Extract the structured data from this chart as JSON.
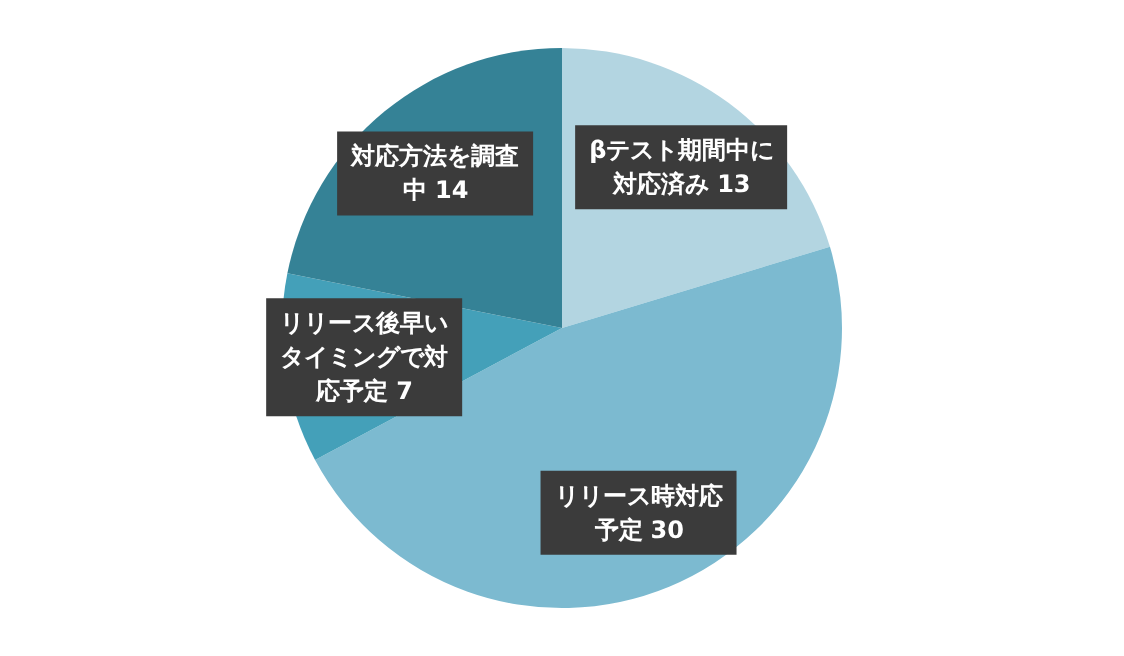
{
  "chart_data": {
    "type": "pie",
    "categories": [
      "βテスト期間中に対応済み",
      "リリース時対応予定",
      "リリース後早いタイミングで対応予定",
      "対応方法を調査中"
    ],
    "values": [
      13,
      30,
      7,
      14
    ],
    "colors": [
      "#b3d5e1",
      "#7cbad0",
      "#44a0b9",
      "#358296"
    ],
    "data_labels": true
  }
}
